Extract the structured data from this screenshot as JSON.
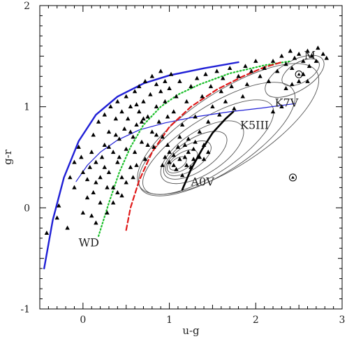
{
  "chart_data": {
    "type": "scatter",
    "title": "",
    "xlabel": "u-g",
    "ylabel": "g-r",
    "xlim": [
      -0.5,
      3.0
    ],
    "ylim": [
      -1.0,
      2.0
    ],
    "x_ticks": [
      0,
      1,
      2,
      3
    ],
    "y_ticks": [
      -1,
      0,
      1,
      2
    ],
    "grid": false,
    "annotations": [
      {
        "text": "M",
        "x": 2.56,
        "y": 1.47
      },
      {
        "text": "K7V",
        "x": 2.22,
        "y": 1.0
      },
      {
        "text": "K5III",
        "x": 1.82,
        "y": 0.78
      },
      {
        "text": "A0V",
        "x": 1.25,
        "y": 0.22
      },
      {
        "text": "WD",
        "x": -0.05,
        "y": -0.38
      }
    ],
    "curves": [
      {
        "style": "blue-thick",
        "color": "#1f1fd6",
        "points": [
          [
            -0.45,
            -0.6
          ],
          [
            -0.35,
            -0.12
          ],
          [
            -0.22,
            0.3
          ],
          [
            -0.05,
            0.66
          ],
          [
            0.15,
            0.92
          ],
          [
            0.4,
            1.1
          ],
          [
            0.7,
            1.23
          ],
          [
            1.0,
            1.31
          ],
          [
            1.4,
            1.38
          ],
          [
            1.8,
            1.44
          ]
        ]
      },
      {
        "style": "blue-thin",
        "color": "#1f1fd6",
        "points": [
          [
            -0.08,
            0.26
          ],
          [
            0.05,
            0.42
          ],
          [
            0.2,
            0.55
          ],
          [
            0.4,
            0.67
          ],
          [
            0.65,
            0.77
          ],
          [
            0.95,
            0.84
          ],
          [
            1.3,
            0.9
          ],
          [
            1.7,
            0.95
          ],
          [
            2.1,
            0.99
          ],
          [
            2.45,
            1.03
          ]
        ]
      },
      {
        "style": "green-dotted",
        "color": "#1bbf2a",
        "points": [
          [
            0.18,
            -0.28
          ],
          [
            0.3,
            0.05
          ],
          [
            0.42,
            0.35
          ],
          [
            0.55,
            0.6
          ],
          [
            0.7,
            0.82
          ],
          [
            0.9,
            1.0
          ],
          [
            1.1,
            1.12
          ],
          [
            1.35,
            1.22
          ],
          [
            1.7,
            1.33
          ],
          [
            2.1,
            1.41
          ],
          [
            2.4,
            1.45
          ]
        ]
      },
      {
        "style": "red-dashed",
        "color": "#e01818",
        "points": [
          [
            0.5,
            -0.22
          ],
          [
            0.55,
            0.0
          ],
          [
            0.65,
            0.27
          ],
          [
            0.8,
            0.55
          ],
          [
            1.0,
            0.8
          ],
          [
            1.25,
            1.0
          ],
          [
            1.55,
            1.17
          ],
          [
            1.85,
            1.3
          ],
          [
            2.1,
            1.39
          ],
          [
            2.3,
            1.44
          ]
        ]
      },
      {
        "style": "black-thick",
        "color": "#000000",
        "points": [
          [
            1.15,
            0.18
          ],
          [
            1.25,
            0.38
          ],
          [
            1.38,
            0.58
          ],
          [
            1.5,
            0.74
          ],
          [
            1.65,
            0.88
          ],
          [
            1.74,
            0.95
          ]
        ]
      }
    ],
    "contours": [
      {
        "cx": 1.45,
        "cy": 0.6,
        "rx": 0.88,
        "ry": 0.27,
        "angle": 33
      },
      {
        "cx": 1.55,
        "cy": 0.68,
        "rx": 1.05,
        "ry": 0.33,
        "angle": 33
      },
      {
        "cx": 1.68,
        "cy": 0.78,
        "rx": 1.22,
        "ry": 0.37,
        "angle": 33
      },
      {
        "cx": 1.38,
        "cy": 0.55,
        "rx": 0.55,
        "ry": 0.21,
        "angle": 33
      },
      {
        "cx": 1.3,
        "cy": 0.52,
        "rx": 0.42,
        "ry": 0.16,
        "angle": 33
      },
      {
        "cx": 1.22,
        "cy": 0.49,
        "rx": 0.3,
        "ry": 0.12,
        "angle": 33
      },
      {
        "cx": 1.15,
        "cy": 0.46,
        "rx": 0.2,
        "ry": 0.08,
        "angle": 33
      },
      {
        "cx": 1.1,
        "cy": 0.44,
        "rx": 0.11,
        "ry": 0.05,
        "angle": 33
      },
      {
        "cx": 2.45,
        "cy": 1.3,
        "rx": 0.38,
        "ry": 0.15,
        "angle": 30
      },
      {
        "cx": 2.52,
        "cy": 1.34,
        "rx": 0.24,
        "ry": 0.1,
        "angle": 30
      }
    ],
    "circled_points": [
      [
        2.43,
        0.3
      ],
      [
        2.5,
        1.32
      ]
    ],
    "series": [
      {
        "marker": "triangle",
        "points": [
          [
            -0.42,
            -0.25
          ],
          [
            -0.3,
            -0.1
          ],
          [
            -0.28,
            0.02
          ],
          [
            -0.18,
            -0.2
          ],
          [
            -0.15,
            0.3
          ],
          [
            -0.1,
            0.45
          ],
          [
            -0.05,
            0.6
          ],
          [
            -0.1,
            0.2
          ],
          [
            0.0,
            -0.05
          ],
          [
            0.05,
            0.1
          ],
          [
            0.08,
            0.4
          ],
          [
            0.1,
            0.55
          ],
          [
            0.12,
            0.72
          ],
          [
            0.15,
            -0.15
          ],
          [
            0.15,
            0.25
          ],
          [
            0.18,
            0.85
          ],
          [
            0.2,
            0.05
          ],
          [
            0.22,
            0.5
          ],
          [
            0.25,
            0.62
          ],
          [
            0.25,
            0.92
          ],
          [
            0.28,
            -0.05
          ],
          [
            0.3,
            0.35
          ],
          [
            0.3,
            0.75
          ],
          [
            0.32,
            1.0
          ],
          [
            0.35,
            0.2
          ],
          [
            0.35,
            0.55
          ],
          [
            0.38,
            0.88
          ],
          [
            0.4,
            0.45
          ],
          [
            0.4,
            1.05
          ],
          [
            0.42,
            0.68
          ],
          [
            0.45,
            0.3
          ],
          [
            0.45,
            0.95
          ],
          [
            0.48,
            0.78
          ],
          [
            0.5,
            0.58
          ],
          [
            0.5,
            1.1
          ],
          [
            0.52,
            0.88
          ],
          [
            0.55,
            0.4
          ],
          [
            0.55,
            1.0
          ],
          [
            0.58,
            0.7
          ],
          [
            0.6,
            1.15
          ],
          [
            0.6,
            0.55
          ],
          [
            0.62,
            0.82
          ],
          [
            0.65,
            0.95
          ],
          [
            0.65,
            1.2
          ],
          [
            0.68,
            0.65
          ],
          [
            0.7,
            1.05
          ],
          [
            0.72,
            0.48
          ],
          [
            0.72,
            1.25
          ],
          [
            0.75,
            0.9
          ],
          [
            0.78,
            1.12
          ],
          [
            0.8,
            0.75
          ],
          [
            0.8,
            1.3
          ],
          [
            0.82,
            0.6
          ],
          [
            0.85,
            1.0
          ],
          [
            0.85,
            1.22
          ],
          [
            0.88,
            0.85
          ],
          [
            0.9,
            1.15
          ],
          [
            0.9,
            1.35
          ],
          [
            0.92,
            0.7
          ],
          [
            0.95,
            1.05
          ],
          [
            0.95,
            1.25
          ],
          [
            0.98,
            0.9
          ],
          [
            1.0,
            1.18
          ],
          [
            1.0,
            0.55
          ],
          [
            1.02,
            1.32
          ],
          [
            1.05,
            0.95
          ],
          [
            1.05,
            0.42
          ],
          [
            1.08,
            1.1
          ],
          [
            1.1,
            0.6
          ],
          [
            1.12,
            1.25
          ],
          [
            1.15,
            0.32
          ],
          [
            1.15,
            0.82
          ],
          [
            1.18,
            0.5
          ],
          [
            1.2,
            1.05
          ],
          [
            1.22,
            0.68
          ],
          [
            1.25,
            0.4
          ],
          [
            1.25,
            1.2
          ],
          [
            1.28,
            0.58
          ],
          [
            1.3,
            0.9
          ],
          [
            1.32,
            1.28
          ],
          [
            1.35,
            0.75
          ],
          [
            1.38,
            1.1
          ],
          [
            1.4,
            0.62
          ],
          [
            1.42,
            1.32
          ],
          [
            1.45,
            0.85
          ],
          [
            1.48,
            1.2
          ],
          [
            1.5,
            1.0
          ],
          [
            1.55,
            1.35
          ],
          [
            1.58,
            0.92
          ],
          [
            1.6,
            1.15
          ],
          [
            1.62,
            1.28
          ],
          [
            1.65,
            1.05
          ],
          [
            1.7,
            1.38
          ],
          [
            1.72,
            1.2
          ],
          [
            1.75,
            0.98
          ],
          [
            1.8,
            1.3
          ],
          [
            1.85,
            1.1
          ],
          [
            1.88,
            1.4
          ],
          [
            1.9,
            1.22
          ],
          [
            1.95,
            1.35
          ],
          [
            2.0,
            1.45
          ],
          [
            2.05,
            1.3
          ],
          [
            2.1,
            1.38
          ],
          [
            2.15,
            1.25
          ],
          [
            2.2,
            1.45
          ],
          [
            2.25,
            1.35
          ],
          [
            2.3,
            1.5
          ],
          [
            2.35,
            1.42
          ],
          [
            2.4,
            1.55
          ],
          [
            2.42,
            1.38
          ],
          [
            2.45,
            1.48
          ],
          [
            2.5,
            1.52
          ],
          [
            2.55,
            1.45
          ],
          [
            2.6,
            1.55
          ],
          [
            2.62,
            1.4
          ],
          [
            2.65,
            1.5
          ],
          [
            2.7,
            1.45
          ],
          [
            2.72,
            1.58
          ],
          [
            2.78,
            1.52
          ],
          [
            2.82,
            1.48
          ],
          [
            2.2,
            0.95
          ],
          [
            2.3,
            1.0
          ],
          [
            2.35,
            1.18
          ],
          [
            2.42,
            1.22
          ],
          [
            2.5,
            1.25
          ],
          [
            2.55,
            1.32
          ],
          [
            2.6,
            1.25
          ],
          [
            1.0,
            0.45
          ],
          [
            1.05,
            0.52
          ],
          [
            1.08,
            0.38
          ],
          [
            1.12,
            0.48
          ],
          [
            1.18,
            0.62
          ],
          [
            1.2,
            0.42
          ],
          [
            1.22,
            0.55
          ],
          [
            1.28,
            0.48
          ],
          [
            0.95,
            0.5
          ],
          [
            0.92,
            0.42
          ],
          [
            0.98,
            0.62
          ],
          [
            1.35,
            0.5
          ],
          [
            1.4,
            0.48
          ],
          [
            1.45,
            0.55
          ],
          [
            1.3,
            0.65
          ],
          [
            1.12,
            0.7
          ],
          [
            0.35,
            0.05
          ],
          [
            0.4,
            0.15
          ],
          [
            0.28,
            0.2
          ],
          [
            0.2,
            0.3
          ],
          [
            0.15,
            0.45
          ],
          [
            0.45,
            0.12
          ],
          [
            0.5,
            0.25
          ],
          [
            0.1,
            -0.08
          ],
          [
            0.58,
            0.3
          ],
          [
            0.62,
            0.42
          ],
          [
            0.68,
            0.85
          ],
          [
            0.75,
            0.62
          ],
          [
            0.55,
            0.75
          ],
          [
            0.42,
            0.5
          ],
          [
            0.3,
            0.6
          ],
          [
            0.85,
            0.72
          ],
          [
            0.0,
            0.35
          ],
          [
            -0.02,
            0.5
          ],
          [
            0.05,
            0.28
          ],
          [
            0.12,
            0.15
          ],
          [
            0.25,
            0.4
          ],
          [
            0.38,
            0.72
          ],
          [
            0.62,
            1.02
          ],
          [
            0.7,
            0.88
          ]
        ]
      }
    ]
  }
}
